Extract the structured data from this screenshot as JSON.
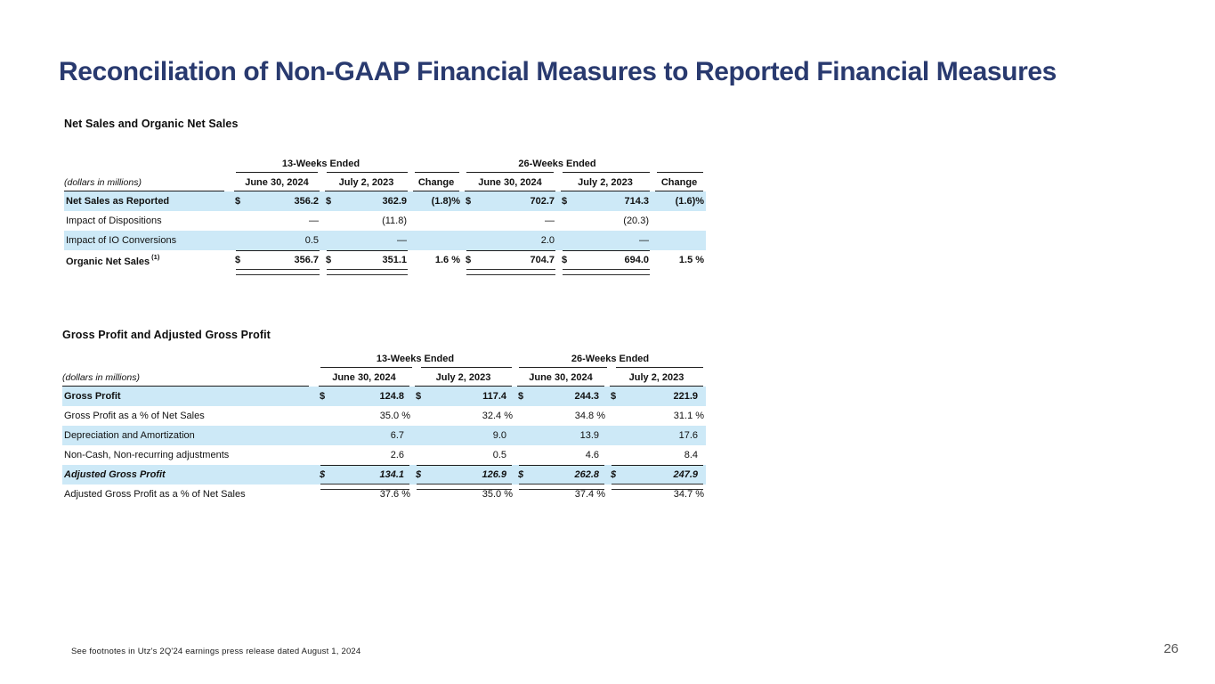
{
  "slide": {
    "title": "Reconciliation of Non-GAAP Financial Measures to Reported Financial Measures",
    "footnote": "See footnotes in Utz's 2Q'24 earnings press release dated August 1, 2024",
    "page_number": "26"
  },
  "colors": {
    "title_navy": "#293A6F",
    "row_highlight": "#CDE9F7",
    "rule": "#1C1C1C"
  },
  "net_sales": {
    "section_title": "Net Sales and Organic Net Sales",
    "unit_label": "(dollars in millions)",
    "group_headers": [
      "13-Weeks Ended",
      "26-Weeks Ended"
    ],
    "column_headers": [
      "June 30, 2024",
      "July 2, 2023",
      "Change",
      "June 30, 2024",
      "July 2, 2023",
      "Change"
    ],
    "rows": [
      {
        "label": "Net Sales as Reported",
        "bold": true,
        "cells": [
          {
            "cur": "$",
            "val": "356.2"
          },
          {
            "cur": "$",
            "val": "362.9"
          },
          {
            "val": "(1.8)%",
            "pct": true
          },
          {
            "cur": "$",
            "val": "702.7"
          },
          {
            "cur": "$",
            "val": "714.3"
          },
          {
            "val": "(1.6)%",
            "pct": true
          }
        ]
      },
      {
        "label": "Impact of Dispositions",
        "cells": [
          {
            "val": "—"
          },
          {
            "val": "(11.8)"
          },
          {
            "val": ""
          },
          {
            "val": "—"
          },
          {
            "val": "(20.3)"
          },
          {
            "val": ""
          }
        ]
      },
      {
        "label": "Impact of IO Conversions",
        "cells": [
          {
            "val": "0.5"
          },
          {
            "val": "—"
          },
          {
            "val": ""
          },
          {
            "val": "2.0"
          },
          {
            "val": "—"
          },
          {
            "val": ""
          }
        ]
      },
      {
        "label": "Organic Net Sales",
        "label_sup": "(1)",
        "bold": true,
        "total": true,
        "cells": [
          {
            "cur": "$",
            "val": "356.7",
            "dbl": true
          },
          {
            "cur": "$",
            "val": "351.1",
            "dbl": true
          },
          {
            "val": "1.6 %",
            "pct": true
          },
          {
            "cur": "$",
            "val": "704.7",
            "dbl": true
          },
          {
            "cur": "$",
            "val": "694.0",
            "dbl": true
          },
          {
            "val": "1.5 %",
            "pct": true
          }
        ]
      }
    ]
  },
  "gross_profit": {
    "section_title": "Gross Profit and Adjusted Gross Profit",
    "unit_label": "(dollars in millions)",
    "group_headers": [
      "13-Weeks Ended",
      "26-Weeks Ended"
    ],
    "column_headers": [
      "June 30, 2024",
      "July 2, 2023",
      "June 30, 2024",
      "July 2, 2023"
    ],
    "rows": [
      {
        "label": "Gross Profit",
        "bold": true,
        "cells": [
          {
            "cur": "$",
            "val": "124.8"
          },
          {
            "cur": "$",
            "val": "117.4"
          },
          {
            "cur": "$",
            "val": "244.3"
          },
          {
            "cur": "$",
            "val": "221.9"
          }
        ]
      },
      {
        "label": "Gross Profit as a % of Net Sales",
        "cells": [
          {
            "val": "35.0 %",
            "pct": true
          },
          {
            "val": "32.4 %",
            "pct": true
          },
          {
            "val": "34.8 %",
            "pct": true
          },
          {
            "val": "31.1 %",
            "pct": true
          }
        ]
      },
      {
        "label": "Depreciation and Amortization",
        "cells": [
          {
            "val": "6.7"
          },
          {
            "val": "9.0"
          },
          {
            "val": "13.9"
          },
          {
            "val": "17.6"
          }
        ]
      },
      {
        "label": "Non-Cash, Non-recurring adjustments",
        "cells": [
          {
            "val": "2.6"
          },
          {
            "val": "0.5"
          },
          {
            "val": "4.6"
          },
          {
            "val": "8.4"
          }
        ]
      },
      {
        "label": "Adjusted Gross Profit",
        "bold": true,
        "italic": true,
        "total": true,
        "cells": [
          {
            "cur": "$",
            "val": "134.1",
            "dbl": true
          },
          {
            "cur": "$",
            "val": "126.9",
            "dbl": true
          },
          {
            "cur": "$",
            "val": "262.8",
            "dbl": true
          },
          {
            "cur": "$",
            "val": "247.9",
            "dbl": true
          }
        ]
      },
      {
        "label": "Adjusted Gross Profit as a % of Net Sales",
        "cells": [
          {
            "val": "37.6 %",
            "pct": true
          },
          {
            "val": "35.0 %",
            "pct": true
          },
          {
            "val": "37.4 %",
            "pct": true
          },
          {
            "val": "34.7 %",
            "pct": true
          }
        ]
      }
    ]
  }
}
